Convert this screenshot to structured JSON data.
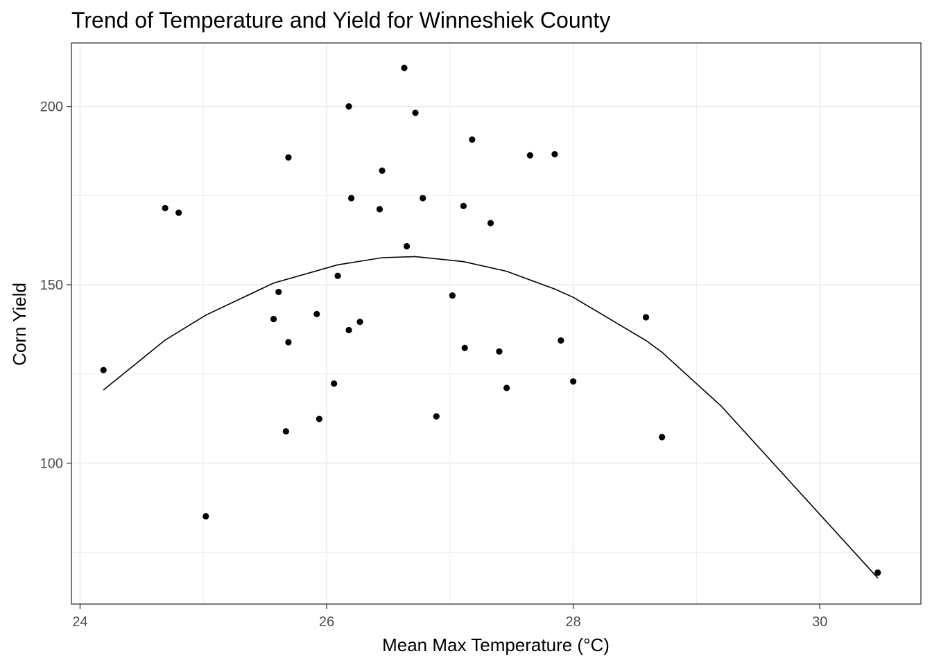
{
  "chart_data": {
    "type": "scatter",
    "title": "Trend of Temperature and Yield for Winneshiek County",
    "xlabel": "Mean Max Temperature (°C)",
    "ylabel": "Corn Yield",
    "xlim": [
      23.93,
      30.82
    ],
    "ylim": [
      60.5,
      217.8
    ],
    "x_ticks": [
      24,
      26,
      28,
      30
    ],
    "y_ticks": [
      100,
      150,
      200
    ],
    "x_minor": [
      25,
      27,
      29
    ],
    "y_minor": [
      75,
      125,
      175
    ],
    "grid": true,
    "points": [
      {
        "x": 24.19,
        "y": 126.1
      },
      {
        "x": 24.69,
        "y": 171.5
      },
      {
        "x": 24.8,
        "y": 170.2
      },
      {
        "x": 25.02,
        "y": 85.1
      },
      {
        "x": 25.57,
        "y": 140.4
      },
      {
        "x": 25.61,
        "y": 148.0
      },
      {
        "x": 25.67,
        "y": 108.9
      },
      {
        "x": 25.69,
        "y": 133.9
      },
      {
        "x": 25.69,
        "y": 185.7
      },
      {
        "x": 25.92,
        "y": 141.8
      },
      {
        "x": 25.94,
        "y": 112.4
      },
      {
        "x": 26.06,
        "y": 122.3
      },
      {
        "x": 26.09,
        "y": 152.5
      },
      {
        "x": 26.18,
        "y": 200.0
      },
      {
        "x": 26.18,
        "y": 137.3
      },
      {
        "x": 26.2,
        "y": 174.3
      },
      {
        "x": 26.27,
        "y": 139.6
      },
      {
        "x": 26.43,
        "y": 171.2
      },
      {
        "x": 26.45,
        "y": 182.0
      },
      {
        "x": 26.63,
        "y": 210.8
      },
      {
        "x": 26.65,
        "y": 160.8
      },
      {
        "x": 26.72,
        "y": 198.2
      },
      {
        "x": 26.78,
        "y": 174.3
      },
      {
        "x": 26.89,
        "y": 113.1
      },
      {
        "x": 27.02,
        "y": 147.0
      },
      {
        "x": 27.11,
        "y": 172.1
      },
      {
        "x": 27.12,
        "y": 132.3
      },
      {
        "x": 27.18,
        "y": 190.7
      },
      {
        "x": 27.33,
        "y": 167.3
      },
      {
        "x": 27.4,
        "y": 131.3
      },
      {
        "x": 27.46,
        "y": 121.1
      },
      {
        "x": 27.65,
        "y": 186.3
      },
      {
        "x": 27.85,
        "y": 186.6
      },
      {
        "x": 27.9,
        "y": 134.4
      },
      {
        "x": 28.0,
        "y": 122.9
      },
      {
        "x": 28.59,
        "y": 140.9
      },
      {
        "x": 28.72,
        "y": 107.3
      },
      {
        "x": 30.47,
        "y": 69.3
      }
    ],
    "trend_line": [
      {
        "x": 24.19,
        "y": 120.5
      },
      {
        "x": 24.69,
        "y": 134.5
      },
      {
        "x": 25.02,
        "y": 141.5
      },
      {
        "x": 25.57,
        "y": 150.5
      },
      {
        "x": 26.09,
        "y": 155.6
      },
      {
        "x": 26.45,
        "y": 157.6
      },
      {
        "x": 26.72,
        "y": 157.9
      },
      {
        "x": 27.11,
        "y": 156.5
      },
      {
        "x": 27.46,
        "y": 153.8
      },
      {
        "x": 27.85,
        "y": 148.8
      },
      {
        "x": 28.0,
        "y": 146.5
      },
      {
        "x": 28.59,
        "y": 134.4
      },
      {
        "x": 28.72,
        "y": 131.1
      },
      {
        "x": 29.2,
        "y": 116.0
      },
      {
        "x": 30.47,
        "y": 67.8
      }
    ],
    "colors": {
      "points": "#000000",
      "line": "#000000",
      "grid": "#ebebeb",
      "panel_border": "#333333",
      "tick_text": "#4d4d4d"
    }
  }
}
